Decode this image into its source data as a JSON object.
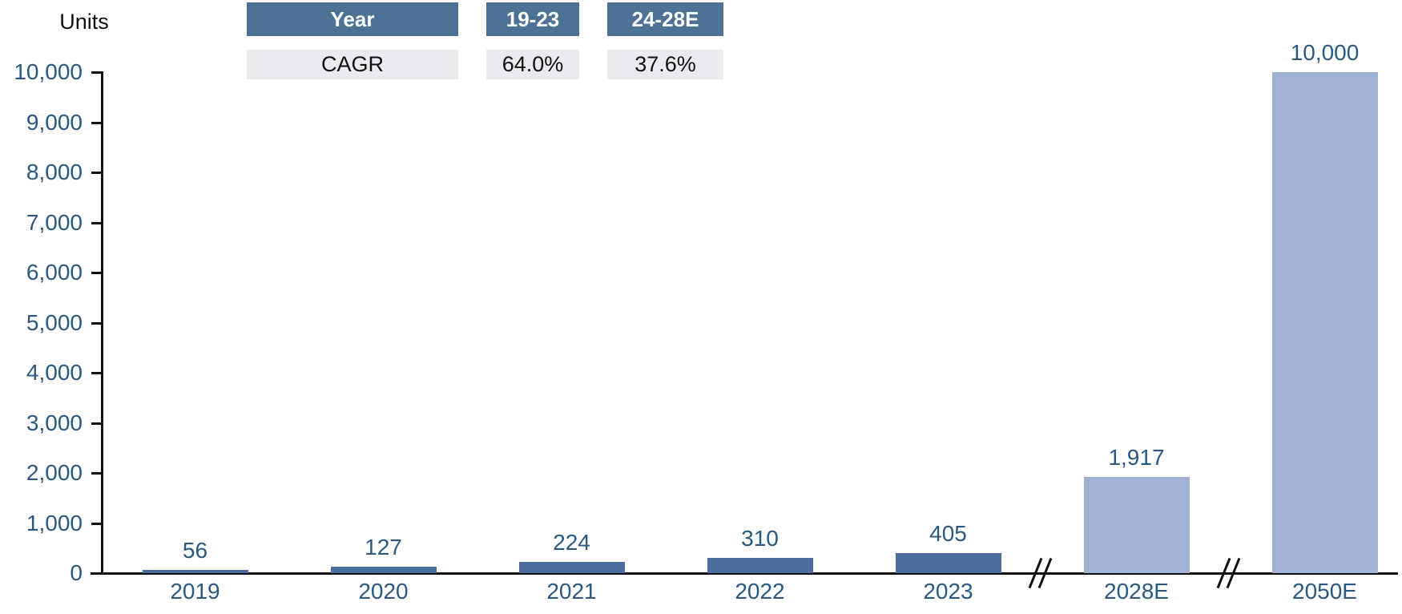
{
  "chart_data": {
    "type": "bar",
    "title": "",
    "ylabel": "Units",
    "xlabel": "",
    "ylim": [
      0,
      10000
    ],
    "grid": false,
    "legend": "none",
    "categories": [
      "2019",
      "2020",
      "2021",
      "2022",
      "2023",
      "2028E",
      "2050E"
    ],
    "values": [
      56,
      127,
      224,
      310,
      405,
      1917,
      10000
    ],
    "bars": [
      {
        "category": "2019",
        "value": 56,
        "display": "56",
        "style": "dark"
      },
      {
        "category": "2020",
        "value": 127,
        "display": "127",
        "style": "dark"
      },
      {
        "category": "2021",
        "value": 224,
        "display": "224",
        "style": "dark"
      },
      {
        "category": "2022",
        "value": 310,
        "display": "310",
        "style": "dark"
      },
      {
        "category": "2023",
        "value": 405,
        "display": "405",
        "style": "dark"
      },
      {
        "category": "2028E",
        "value": 1917,
        "display": "1,917",
        "style": "light"
      },
      {
        "category": "2050E",
        "value": 10000,
        "display": "10,000",
        "style": "light"
      }
    ],
    "y_ticks": [
      "0",
      "1,000",
      "2,000",
      "3,000",
      "4,000",
      "5,000",
      "6,000",
      "7,000",
      "8,000",
      "9,000",
      "10,000"
    ],
    "axis_break_after_column": [
      4,
      5
    ],
    "colors": {
      "dark_bar": "#4d6d9e",
      "light_bar": "#a0b2d3",
      "axis_text": "#2b5880",
      "axis_line": "#111111",
      "table_header_bg": "#4e7296",
      "table_row_bg": "#e9ebee"
    }
  },
  "cagr_table": {
    "header": [
      "Year",
      "19-23",
      "24-28E"
    ],
    "row": [
      "CAGR",
      "64.0%",
      "37.6%"
    ]
  }
}
